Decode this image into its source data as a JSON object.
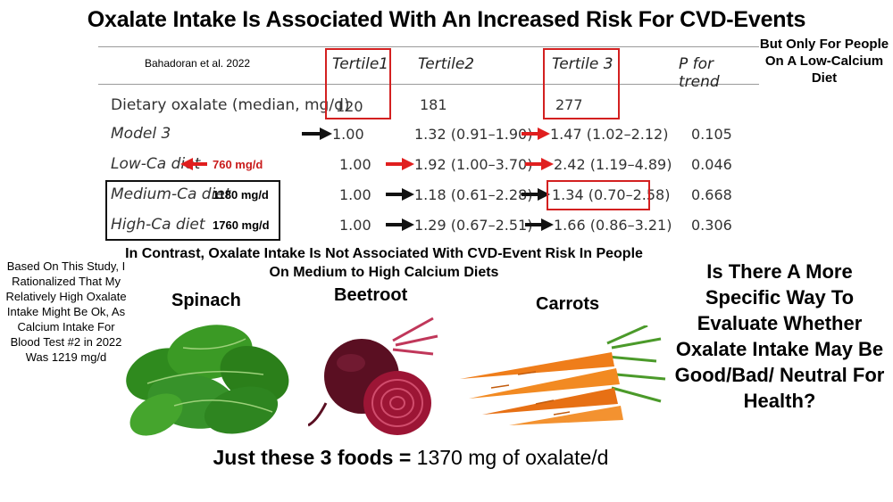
{
  "title": "Oxalate Intake Is Associated With An Increased Risk For CVD-Events",
  "note_right": "But Only For People On A Low-Calcium Diet",
  "table": {
    "citation": "Bahadoran et al. 2022",
    "headers": [
      "Tertile1",
      "Tertile2",
      "Tertile 3",
      "P for trend"
    ],
    "rows": [
      {
        "label": "Dietary oxalate (median, mg/d)",
        "t1": "120",
        "t2": "181",
        "t3": "277",
        "p": ""
      },
      {
        "label": "Model 3",
        "t1": "1.00",
        "t2": "1.32 (0.91–1.90)",
        "t3": "1.47 (1.02–2.12)",
        "p": "0.105"
      },
      {
        "label": "Low-Ca diet",
        "label_mg": "760 mg/d",
        "t1": "1.00",
        "t2": "1.92 (1.00–3.70)",
        "t3": "2.42 (1.19–4.89)",
        "p": "0.046"
      },
      {
        "label": "Medium-Ca diet",
        "label_mg": "1180 mg/d",
        "t1": "1.00",
        "t2": "1.18 (0.61–2.28)",
        "t3": "1.34 (0.70–2.58)",
        "p": "0.668"
      },
      {
        "label": "High-Ca diet",
        "label_mg": "1760 mg/d",
        "t1": "1.00",
        "t2": "1.29 (0.67–2.51)",
        "t3": "1.66 (0.86–3.21)",
        "p": "0.306"
      }
    ]
  },
  "contrast_text": "In Contrast, Oxalate Intake Is Not Associated With CVD-Event Risk In People On Medium to High Calcium Diets",
  "left_note": "Based On This Study, I Rationalized That My Relatively High Oxalate Intake Might Be Ok, As Calcium Intake For Blood Test #2 in 2022 Was 1219 mg/d",
  "foods": {
    "spinach": "Spinach",
    "beetroot": "Beetroot",
    "carrots": "Carrots"
  },
  "question": "Is There A More Specific Way To Evaluate Whether Oxalate Intake May Be Good/Bad/ Neutral For Health?",
  "bottom": {
    "prefix": "Just these 3 foods =",
    "value": "1370 mg of oxalate/d"
  },
  "colors": {
    "highlight_red": "#d32020",
    "arrow_red": "#e01e1e",
    "arrow_black": "#111111"
  }
}
